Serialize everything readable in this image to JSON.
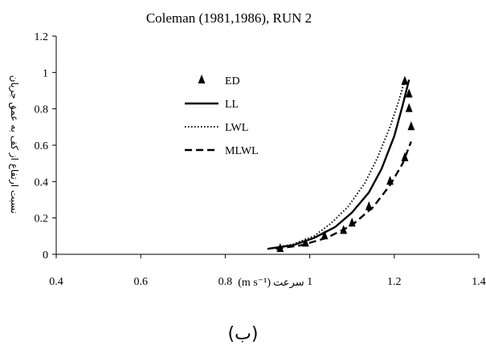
{
  "chart_data": {
    "type": "scatter",
    "title": "Coleman (1981,1986), RUN 2",
    "xlabel": "سرعت",
    "xlabel_unit": "(m s⁻¹)",
    "ylabel": "نسبت ارتفاع از کف به عمق جریان",
    "xlim": [
      0.4,
      1.4
    ],
    "ylim": [
      0,
      1.2
    ],
    "x_ticks": [
      "0.4",
      "0.6",
      "0.8",
      "1",
      "1.2",
      "1.4"
    ],
    "y_ticks": [
      "0",
      "0.2",
      "0.4",
      "0.6",
      "0.8",
      "1",
      "1.2"
    ],
    "grid": false,
    "legend_position": "top-left",
    "series": [
      {
        "name": "ED",
        "style": "triangle-markers",
        "color": "#000000",
        "points": [
          {
            "x": 0.93,
            "y": 0.03
          },
          {
            "x": 0.99,
            "y": 0.06
          },
          {
            "x": 1.035,
            "y": 0.1
          },
          {
            "x": 1.08,
            "y": 0.13
          },
          {
            "x": 1.1,
            "y": 0.17
          },
          {
            "x": 1.14,
            "y": 0.26
          },
          {
            "x": 1.19,
            "y": 0.4
          },
          {
            "x": 1.225,
            "y": 0.53
          },
          {
            "x": 1.24,
            "y": 0.7
          },
          {
            "x": 1.235,
            "y": 0.8
          },
          {
            "x": 1.235,
            "y": 0.88
          },
          {
            "x": 1.225,
            "y": 0.95
          }
        ]
      },
      {
        "name": "LL",
        "style": "solid",
        "color": "#000000",
        "points": [
          {
            "x": 0.9,
            "y": 0.03
          },
          {
            "x": 0.96,
            "y": 0.05
          },
          {
            "x": 1.01,
            "y": 0.09
          },
          {
            "x": 1.06,
            "y": 0.15
          },
          {
            "x": 1.1,
            "y": 0.23
          },
          {
            "x": 1.14,
            "y": 0.34
          },
          {
            "x": 1.17,
            "y": 0.47
          },
          {
            "x": 1.2,
            "y": 0.65
          },
          {
            "x": 1.22,
            "y": 0.82
          },
          {
            "x": 1.235,
            "y": 0.96
          }
        ]
      },
      {
        "name": "LWL",
        "style": "dotted",
        "color": "#000000",
        "points": [
          {
            "x": 0.9,
            "y": 0.03
          },
          {
            "x": 0.96,
            "y": 0.055
          },
          {
            "x": 1.01,
            "y": 0.1
          },
          {
            "x": 1.05,
            "y": 0.17
          },
          {
            "x": 1.09,
            "y": 0.26
          },
          {
            "x": 1.13,
            "y": 0.39
          },
          {
            "x": 1.16,
            "y": 0.53
          },
          {
            "x": 1.19,
            "y": 0.7
          },
          {
            "x": 1.21,
            "y": 0.84
          },
          {
            "x": 1.225,
            "y": 0.96
          }
        ]
      },
      {
        "name": "MLWL",
        "style": "dashed",
        "color": "#000000",
        "points": [
          {
            "x": 0.92,
            "y": 0.03
          },
          {
            "x": 0.98,
            "y": 0.05
          },
          {
            "x": 1.04,
            "y": 0.09
          },
          {
            "x": 1.1,
            "y": 0.16
          },
          {
            "x": 1.15,
            "y": 0.26
          },
          {
            "x": 1.19,
            "y": 0.38
          },
          {
            "x": 1.22,
            "y": 0.5
          },
          {
            "x": 1.24,
            "y": 0.62
          }
        ]
      }
    ]
  },
  "caption": "(ب)"
}
